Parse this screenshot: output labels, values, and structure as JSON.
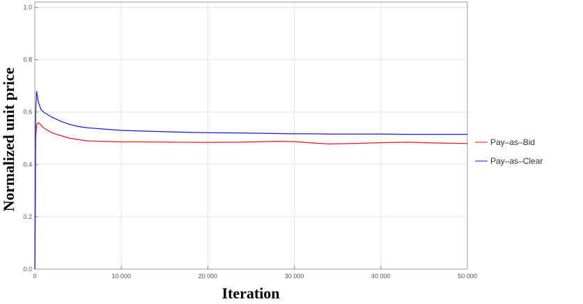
{
  "chart_data": {
    "type": "line",
    "xlabel": "Iteration",
    "ylabel": "Normalized unit price",
    "x": [
      0,
      100,
      200,
      400,
      700,
      1000,
      1500,
      2000,
      3000,
      4000,
      5000,
      6000,
      8000,
      10000,
      13000,
      16000,
      20000,
      24000,
      28000,
      30000,
      32000,
      34000,
      37000,
      40000,
      43000,
      46000,
      50000
    ],
    "series": [
      {
        "name": "Pay–as–Bid",
        "color": "#e8141c",
        "values": [
          0,
          0.5,
          0.55,
          0.56,
          0.55,
          0.54,
          0.53,
          0.52,
          0.51,
          0.5,
          0.495,
          0.49,
          0.488,
          0.486,
          0.486,
          0.485,
          0.484,
          0.485,
          0.488,
          0.487,
          0.482,
          0.478,
          0.48,
          0.483,
          0.485,
          0.482,
          0.48
        ]
      },
      {
        "name": "Pay–as–Clear",
        "color": "#1018e0",
        "values": [
          0,
          0.6,
          0.68,
          0.64,
          0.61,
          0.6,
          0.59,
          0.58,
          0.565,
          0.553,
          0.545,
          0.54,
          0.535,
          0.53,
          0.527,
          0.524,
          0.521,
          0.52,
          0.518,
          0.517,
          0.517,
          0.516,
          0.516,
          0.516,
          0.515,
          0.515,
          0.515
        ]
      }
    ],
    "xlim": [
      0,
      50000
    ],
    "xticks": [
      0,
      {
        "value": 10000,
        "label": "10 000"
      },
      {
        "value": 20000,
        "label": "20 000"
      },
      {
        "value": 30000,
        "label": "30 000"
      },
      {
        "value": 40000,
        "label": "40 000"
      },
      {
        "value": 50000,
        "label": "50 000"
      }
    ],
    "ylim": [
      0,
      1.02
    ],
    "yticks": [
      {
        "value": 0,
        "label": "0.0"
      },
      0.2,
      0.4,
      0.6,
      0.8,
      {
        "value": 1,
        "label": "1.0"
      }
    ],
    "grid": true,
    "legend": "right"
  }
}
